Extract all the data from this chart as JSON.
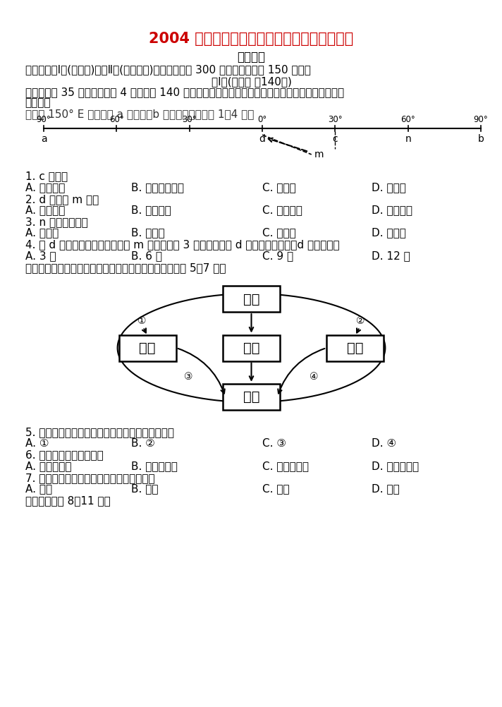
{
  "title": "2004 年哈工大附属中学毕业班阶段性验收试题",
  "subtitle": "文科综合",
  "intro1": "本试卷分第Ⅰ卷(选择题)和第Ⅱ卷(非选择题)两部分。满分 300 分。考试时间为 150 分钟。",
  "intro2": "第Ⅰ卷(选择题 共140分)",
  "intro3_1": "一、本卷共 35 小题，每小题 4 分，共计 140 分。在每小题列出的四个选项中，只有一项是最符合题目",
  "intro3_2": "要求的。",
  "map_desc": "下图是 150° E 经线，且 a 为海洋，b 为陆地。读图完成 1－4 题。",
  "q1": "1. c 地位于",
  "q1_a": "A. 亚欧大陆",
  "q1_b": "B. 澳大利亚大陆",
  "q1_c": "C. 印度洋",
  "q1_d": "D. 太平洋",
  "q2": "2. d 地位于 m 地的",
  "q2_a": "A. 东北方向",
  "q2_b": "B. 东南方向",
  "q2_c": "C. 西北方向",
  "q2_d": "D. 西南方向",
  "q3": "3. n 地的盛得风是",
  "q3_a": "A. 东北风",
  "q3_b": "B. 东南风",
  "q3_c": "C. 西北风",
  "q3_d": "D. 西南风",
  "q4": "4. 当 d 迎来日出时，一架飞机从 m 地出发，经 3 小时飞行到达 d 地，飞机到达时，d 地的时间是",
  "q4_a": "A. 3 时",
  "q4_b": "B. 6 时",
  "q4_c": "C. 9 时",
  "q4_d": "D. 12 时",
  "diagram_desc": "下图是德国鲁尔区五大工业部门的联系示意图。读图完成 5－7 题。",
  "box_coal": "煤炭",
  "box_steel": "钢铁",
  "box_power": "电力",
  "box_chem": "化工",
  "box_mech": "机械",
  "q5": "5. 图中有一个箭头的指向是不恰当的，这个箭头是",
  "q5_a": "A. ①",
  "q5_b": "B. ②",
  "q5_c": "C. ③",
  "q5_d": "D. ④",
  "q6": "6. 煤炭工业的发展类型是",
  "q6_a": "A. 资源密集型",
  "q6_b": "B. 资金密集型",
  "q6_c": "C. 技术密集型",
  "q6_d": "D. 劳动密集型",
  "q7": "7. 鲁尔区各工业部门中，区位明显西移的是",
  "q7_a": "A. 煤炭",
  "q7_b": "B. 钢铁",
  "q7_c": "C. 机械",
  "q7_d": "D. 化工",
  "q8_intro": "读下图，完成 8－11 题。",
  "background_color": "#ffffff",
  "text_color": "#000000",
  "title_color": "#cc0000",
  "long_labels": [
    "90°",
    "60°",
    "30°",
    "0°",
    "30°",
    "60°",
    "90°"
  ],
  "long_x": [
    80,
    213,
    347,
    480,
    613,
    747,
    880
  ],
  "labels_below": [
    [
      "a",
      80
    ],
    [
      "d",
      480
    ],
    [
      "c",
      613
    ],
    [
      "n",
      747
    ],
    [
      "b",
      880
    ]
  ]
}
